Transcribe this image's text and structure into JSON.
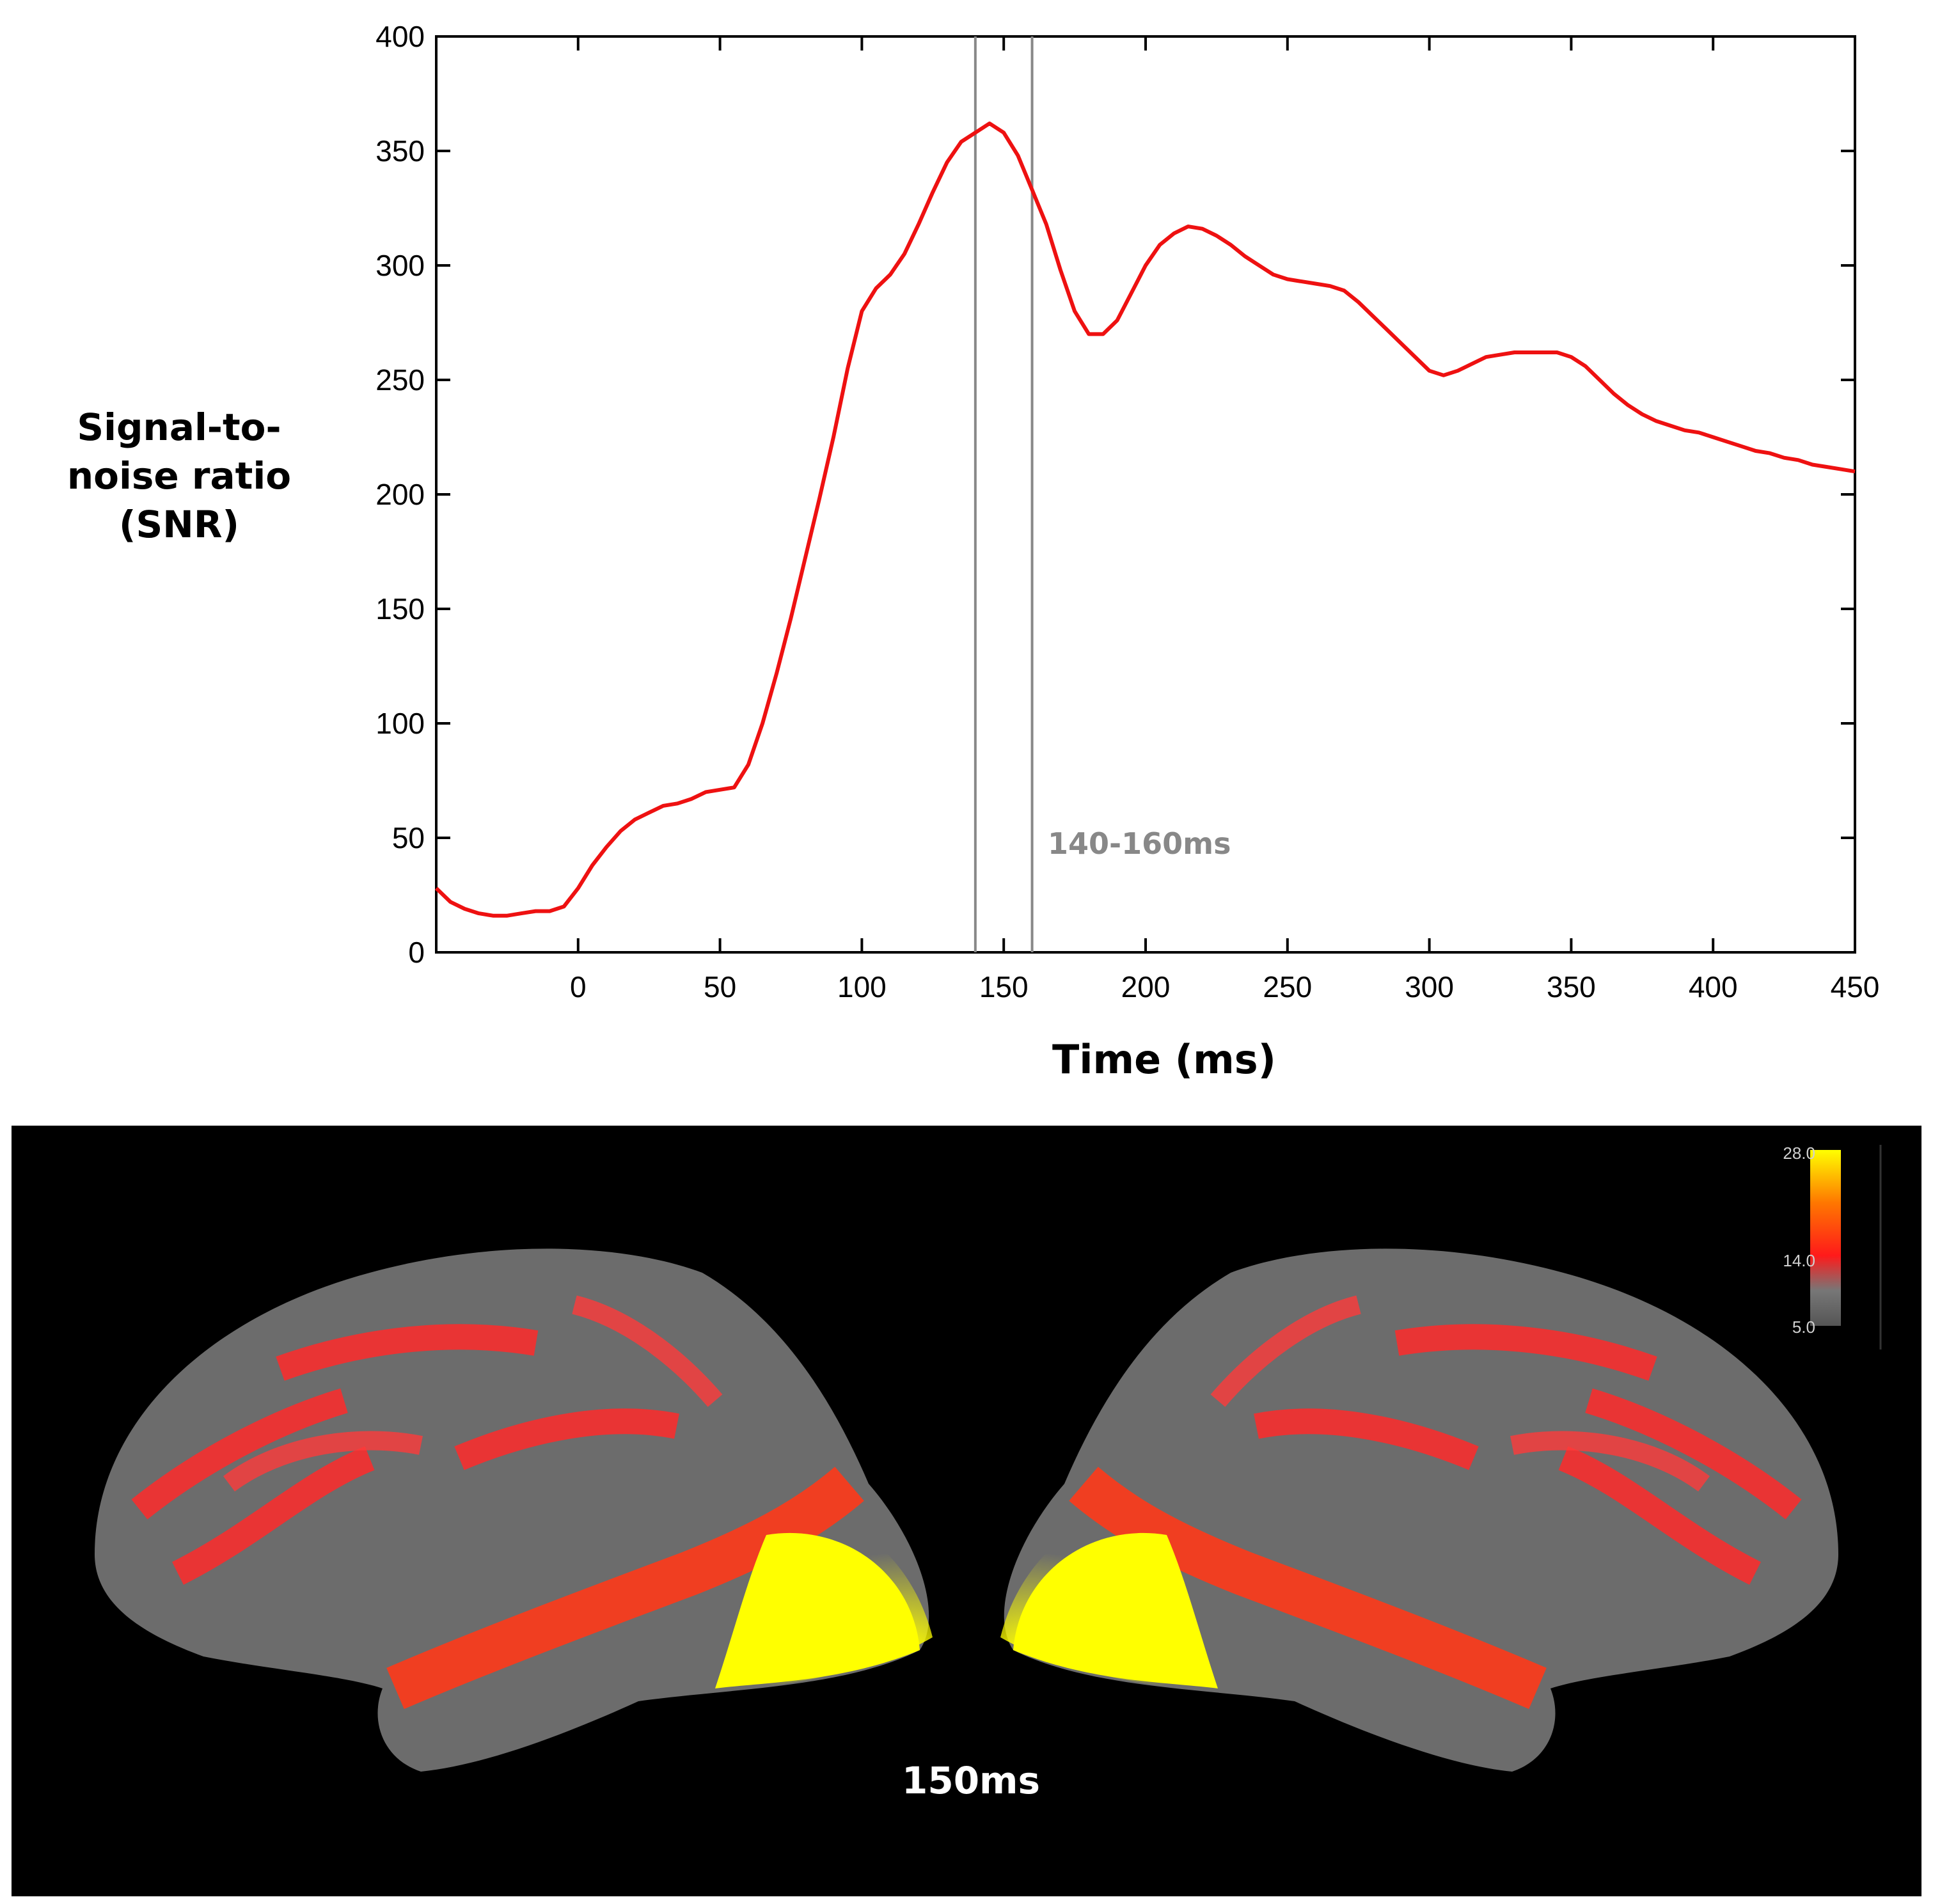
{
  "chart_data": {
    "type": "line",
    "xlabel": "Time (ms)",
    "ylabel": "Signal-to-\nnoise ratio\n(SNR)",
    "xlim": [
      -50,
      450
    ],
    "ylim": [
      0,
      400
    ],
    "xticks": [
      0,
      50,
      100,
      150,
      200,
      250,
      300,
      350,
      400,
      450
    ],
    "yticks": [
      0,
      50,
      100,
      150,
      200,
      250,
      300,
      350,
      400
    ],
    "grid": false,
    "series": [
      {
        "color": "#ee1111",
        "x": [
          -50,
          -45,
          -40,
          -35,
          -30,
          -25,
          -20,
          -15,
          -10,
          -5,
          0,
          5,
          10,
          15,
          20,
          25,
          30,
          35,
          40,
          45,
          50,
          55,
          60,
          65,
          70,
          75,
          80,
          85,
          90,
          95,
          100,
          105,
          110,
          115,
          120,
          125,
          130,
          135,
          140,
          145,
          150,
          155,
          160,
          165,
          170,
          175,
          180,
          185,
          190,
          195,
          200,
          205,
          210,
          215,
          220,
          225,
          230,
          235,
          240,
          245,
          250,
          255,
          260,
          265,
          270,
          275,
          280,
          285,
          290,
          295,
          300,
          305,
          310,
          315,
          320,
          325,
          330,
          335,
          340,
          345,
          350,
          355,
          360,
          365,
          370,
          375,
          380,
          385,
          390,
          395,
          400,
          405,
          410,
          415,
          420,
          425,
          430,
          435,
          440,
          445,
          450
        ],
        "y": [
          28,
          22,
          19,
          17,
          16,
          16,
          17,
          18,
          18,
          20,
          28,
          38,
          46,
          53,
          58,
          61,
          64,
          65,
          67,
          70,
          71,
          72,
          82,
          100,
          122,
          146,
          172,
          198,
          225,
          255,
          280,
          290,
          296,
          305,
          318,
          332,
          345,
          354,
          358,
          362,
          358,
          348,
          333,
          318,
          298,
          280,
          270,
          270,
          276,
          288,
          300,
          309,
          314,
          317,
          316,
          313,
          309,
          304,
          300,
          296,
          294,
          293,
          292,
          291,
          289,
          284,
          278,
          272,
          266,
          260,
          254,
          252,
          254,
          257,
          260,
          261,
          262,
          262,
          262,
          262,
          260,
          256,
          250,
          244,
          239,
          235,
          232,
          230,
          228,
          227,
          225,
          223,
          221,
          219,
          218,
          216,
          215,
          213,
          212,
          211,
          210
        ]
      }
    ],
    "vlines": [
      140,
      160
    ],
    "annotation": "140-160ms"
  },
  "brain_map": {
    "timepoint_label": "150ms",
    "colorbar": {
      "max_label": "28.0",
      "mid_label": "14.0",
      "min_label": "5.0",
      "colors": [
        "#ffff00",
        "#ff7700",
        "#ff1a1a",
        "#777777",
        "#555555"
      ]
    }
  }
}
